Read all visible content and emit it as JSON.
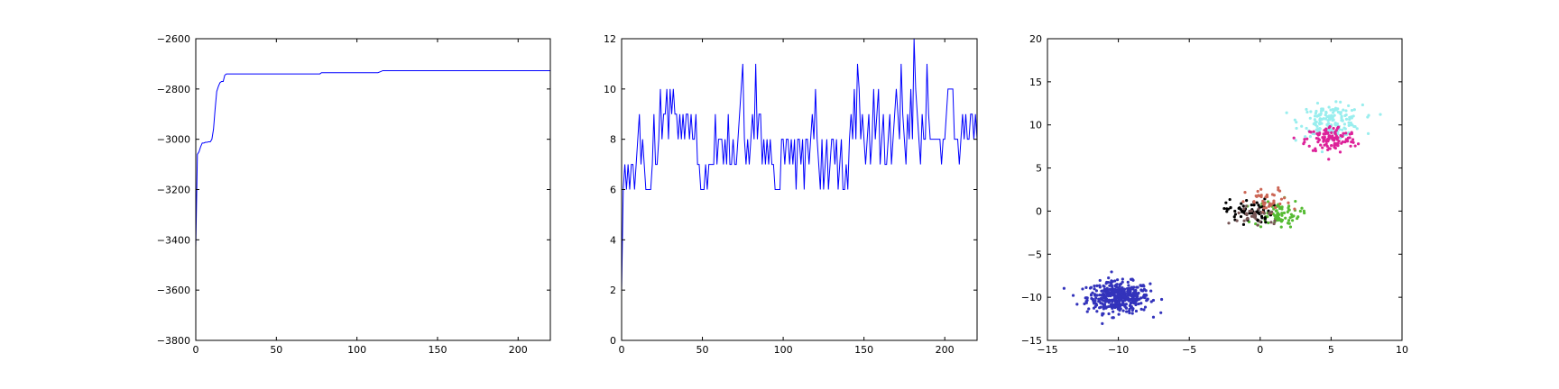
{
  "chart_data": [
    {
      "type": "line",
      "title": "",
      "xlabel": "",
      "ylabel": "",
      "xlim": [
        0,
        220
      ],
      "ylim": [
        -3800,
        -2600
      ],
      "xticks": [
        0,
        50,
        100,
        150,
        200
      ],
      "yticks": [
        -3800,
        -3600,
        -3400,
        -3200,
        -3000,
        -2800,
        -2600
      ],
      "grid": false,
      "series": [
        {
          "color": "#0000ff",
          "x": [
            0,
            1,
            2,
            3,
            4,
            5,
            6,
            7,
            8,
            9,
            10,
            11,
            12,
            13,
            14,
            15,
            16,
            17,
            18,
            19,
            20,
            21,
            22,
            24,
            30,
            40,
            60,
            77,
            78,
            90,
            113,
            115,
            116,
            220
          ],
          "y": [
            -3430,
            -3060,
            -3050,
            -3030,
            -3015,
            -3015,
            -3012,
            -3012,
            -3010,
            -3010,
            -3000,
            -2960,
            -2880,
            -2810,
            -2790,
            -2775,
            -2770,
            -2770,
            -2745,
            -2740,
            -2740,
            -2740,
            -2740,
            -2740,
            -2740,
            -2740,
            -2740,
            -2740,
            -2735,
            -2735,
            -2735,
            -2730,
            -2727,
            -2727
          ]
        }
      ]
    },
    {
      "type": "line",
      "title": "",
      "xlabel": "",
      "ylabel": "",
      "xlim": [
        0,
        220
      ],
      "ylim": [
        0,
        12
      ],
      "xticks": [
        0,
        50,
        100,
        150,
        200
      ],
      "yticks": [
        0,
        2,
        4,
        6,
        8,
        10,
        12
      ],
      "grid": false,
      "series": [
        {
          "color": "#0000ff",
          "x": [
            0,
            1,
            2,
            3,
            4,
            5,
            6,
            7,
            8,
            9,
            10,
            11,
            12,
            13,
            14,
            15,
            16,
            17,
            18,
            19,
            20,
            21,
            22,
            23,
            24,
            25,
            26,
            27,
            28,
            29,
            30,
            31,
            32,
            33,
            34,
            35,
            36,
            37,
            38,
            39,
            40,
            41,
            42,
            43,
            44,
            45,
            46,
            47,
            48,
            49,
            50,
            51,
            52,
            53,
            54,
            55,
            56,
            57,
            58,
            59,
            60,
            61,
            62,
            63,
            64,
            65,
            66,
            67,
            68,
            69,
            70,
            71,
            72,
            73,
            74,
            75,
            76,
            77,
            78,
            79,
            80,
            81,
            82,
            83,
            84,
            85,
            86,
            87,
            88,
            89,
            90,
            91,
            92,
            93,
            94,
            95,
            96,
            97,
            98,
            99,
            100,
            101,
            102,
            103,
            104,
            105,
            106,
            107,
            108,
            109,
            110,
            111,
            112,
            113,
            114,
            115,
            116,
            117,
            118,
            119,
            120,
            121,
            122,
            123,
            124,
            125,
            126,
            127,
            128,
            129,
            130,
            131,
            132,
            133,
            134,
            135,
            136,
            137,
            138,
            139,
            140,
            141,
            142,
            143,
            144,
            145,
            146,
            147,
            148,
            149,
            150,
            151,
            152,
            153,
            154,
            155,
            156,
            157,
            158,
            159,
            160,
            161,
            162,
            163,
            164,
            165,
            166,
            167,
            168,
            169,
            170,
            171,
            172,
            173,
            174,
            175,
            176,
            177,
            178,
            179,
            180,
            181,
            182,
            183,
            184,
            185,
            186,
            187,
            188,
            189,
            190,
            191,
            192,
            193,
            194,
            195,
            196,
            197,
            198,
            199,
            200,
            201,
            202,
            203,
            204,
            205,
            206,
            207,
            208,
            209,
            210,
            211,
            212,
            213,
            214,
            215,
            216,
            217,
            218,
            219,
            220
          ],
          "y": [
            2,
            6,
            7,
            6,
            7,
            6,
            7,
            7,
            6,
            7,
            8,
            9,
            7,
            8,
            7,
            6,
            6,
            6,
            6,
            7,
            9,
            7,
            7,
            8,
            10,
            8,
            9,
            9,
            10,
            8,
            10,
            9,
            10,
            9,
            9,
            8,
            9,
            8,
            9,
            8,
            9,
            9,
            8,
            9,
            8,
            8,
            9,
            7,
            7,
            6,
            6,
            6,
            7,
            6,
            7,
            7,
            7,
            7,
            9,
            7,
            8,
            8,
            8,
            7,
            8,
            7,
            9,
            7,
            7,
            8,
            7,
            7,
            8,
            9,
            10,
            11,
            8,
            7,
            8,
            7,
            8,
            9,
            8,
            11,
            8,
            9,
            9,
            7,
            8,
            7,
            8,
            7,
            8,
            7,
            7,
            6,
            6,
            6,
            6,
            8,
            8,
            7,
            8,
            8,
            7,
            8,
            7,
            8,
            6,
            8,
            8,
            7,
            8,
            6,
            8,
            8,
            7,
            8,
            9,
            8,
            10,
            8,
            7,
            6,
            8,
            6,
            7,
            8,
            6,
            7,
            8,
            8,
            7,
            8,
            6,
            7,
            8,
            6,
            6,
            7,
            6,
            8,
            9,
            8,
            10,
            8,
            11,
            10,
            8,
            9,
            8,
            7,
            8,
            9,
            7,
            8,
            10,
            8,
            9,
            10,
            7,
            8,
            9,
            7,
            7,
            8,
            9,
            7,
            8,
            9,
            10,
            9,
            8,
            11,
            9,
            8,
            7,
            9,
            8,
            10,
            8,
            12,
            10,
            9,
            8,
            7,
            9,
            8,
            8,
            11,
            9,
            8,
            8,
            8,
            8,
            8,
            8,
            8,
            7,
            8,
            8,
            9,
            10,
            10,
            10,
            10,
            8,
            8,
            8,
            7,
            8,
            9,
            8,
            9,
            8,
            8,
            9,
            9,
            8,
            9,
            8
          ]
        }
      ]
    },
    {
      "type": "scatter",
      "title": "",
      "xlabel": "",
      "ylabel": "",
      "xlim": [
        -15,
        10
      ],
      "ylim": [
        -15,
        20
      ],
      "xticks": [
        -15,
        -10,
        -5,
        0,
        5,
        10
      ],
      "yticks": [
        -15,
        -10,
        -5,
        0,
        5,
        10,
        15,
        20
      ],
      "grid": false,
      "series": [
        {
          "color": "#3333bb",
          "n": 420,
          "center": [
            -10,
            -10
          ],
          "spread": [
            1.1,
            0.9
          ]
        },
        {
          "color": "#99eeee",
          "n": 160,
          "center": [
            5,
            10.5
          ],
          "spread": [
            1.1,
            0.9
          ]
        },
        {
          "color": "#dd2299",
          "n": 120,
          "center": [
            5,
            8.3
          ],
          "spread": [
            0.9,
            0.8
          ]
        },
        {
          "color": "#55bb33",
          "n": 80,
          "center": [
            1.2,
            -0.3
          ],
          "spread": [
            0.8,
            0.8
          ]
        },
        {
          "color": "#000000",
          "n": 70,
          "center": [
            -0.8,
            0.0
          ],
          "spread": [
            0.8,
            0.7
          ]
        },
        {
          "color": "#cc6655",
          "n": 40,
          "center": [
            0.6,
            1.0
          ],
          "spread": [
            0.8,
            0.8
          ]
        },
        {
          "color": "#775555",
          "n": 30,
          "center": [
            -0.2,
            -0.5
          ],
          "spread": [
            0.9,
            0.7
          ]
        }
      ]
    }
  ]
}
